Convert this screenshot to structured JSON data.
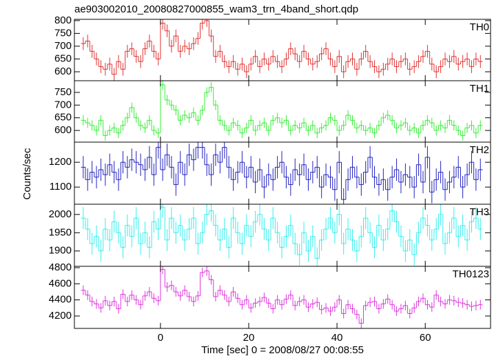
{
  "chart_data": [
    {
      "type": "step",
      "title": "ae903002010_20080827000855_wam3_trn_4band_short.qdp",
      "label": "TH0",
      "color": "#e03030",
      "x": [
        -17.5,
        -16.5,
        -15.5,
        -14.5,
        -13.5,
        -12.5,
        -11.5,
        -10.5,
        -9.5,
        -8.5,
        -7.5,
        -6.5,
        -5.5,
        -4.5,
        -3.5,
        -2.5,
        -1.5,
        -0.5,
        0.5,
        1.5,
        2.5,
        3.5,
        4.5,
        5.5,
        6.5,
        7.5,
        8.5,
        9.5,
        10.5,
        11.5,
        12.5,
        13.5,
        14.5,
        15.5,
        16.5,
        17.5,
        18.5,
        19.5,
        20.5,
        21.5,
        22.5,
        23.5,
        24.5,
        25.5,
        26.5,
        27.5,
        28.5,
        29.5,
        30.5,
        31.5,
        32.5,
        33.5,
        34.5,
        35.5,
        36.5,
        37.5,
        38.5,
        39.5,
        40.5,
        41.5,
        42.5,
        43.5,
        44.5,
        45.5,
        46.5,
        47.5,
        48.5,
        49.5,
        50.5,
        51.5,
        52.5,
        53.5,
        54.5,
        55.5,
        56.5,
        57.5,
        58.5,
        59.5,
        60.5,
        61.5,
        62.5,
        63.5,
        64.5,
        65.5,
        66.5,
        67.5,
        68.5,
        69.5,
        70.5,
        71.5,
        72.5
      ],
      "values": [
        710,
        720,
        680,
        650,
        620,
        610,
        630,
        590,
        640,
        610,
        680,
        690,
        660,
        640,
        690,
        720,
        680,
        650,
        790,
        760,
        700,
        740,
        680,
        700,
        690,
        710,
        730,
        790,
        800,
        740,
        660,
        680,
        640,
        620,
        640,
        610,
        630,
        600,
        630,
        660,
        620,
        650,
        630,
        660,
        640,
        620,
        650,
        690,
        670,
        640,
        680,
        650,
        630,
        640,
        670,
        690,
        650,
        620,
        660,
        600,
        640,
        650,
        610,
        650,
        680,
        640,
        620,
        600,
        610,
        630,
        650,
        620,
        640,
        650,
        610,
        620,
        640,
        660,
        680,
        630,
        600,
        620,
        650,
        640,
        660,
        630,
        640,
        650,
        620,
        650,
        640
      ],
      "yerr": 25,
      "xlim": [
        -19.5,
        74.8
      ],
      "xticks": [
        0,
        20,
        40,
        60
      ],
      "ylim": [
        565,
        805
      ],
      "yticks": [
        600,
        650,
        700,
        750,
        800
      ]
    },
    {
      "type": "step",
      "label": "TH1",
      "color": "#33ee33",
      "x": [
        -17.5,
        -16.5,
        -15.5,
        -14.5,
        -13.5,
        -12.5,
        -11.5,
        -10.5,
        -9.5,
        -8.5,
        -7.5,
        -6.5,
        -5.5,
        -4.5,
        -3.5,
        -2.5,
        -1.5,
        -0.5,
        0.5,
        1.5,
        2.5,
        3.5,
        4.5,
        5.5,
        6.5,
        7.5,
        8.5,
        9.5,
        10.5,
        11.5,
        12.5,
        13.5,
        14.5,
        15.5,
        16.5,
        17.5,
        18.5,
        19.5,
        20.5,
        21.5,
        22.5,
        23.5,
        24.5,
        25.5,
        26.5,
        27.5,
        28.5,
        29.5,
        30.5,
        31.5,
        32.5,
        33.5,
        34.5,
        35.5,
        36.5,
        37.5,
        38.5,
        39.5,
        40.5,
        41.5,
        42.5,
        43.5,
        44.5,
        45.5,
        46.5,
        47.5,
        48.5,
        49.5,
        50.5,
        51.5,
        52.5,
        53.5,
        54.5,
        55.5,
        56.5,
        57.5,
        58.5,
        59.5,
        60.5,
        61.5,
        62.5,
        63.5,
        64.5,
        65.5,
        66.5,
        67.5,
        68.5,
        69.5,
        70.5,
        71.5,
        72.5
      ],
      "values": [
        640,
        630,
        620,
        600,
        640,
        580,
        600,
        610,
        590,
        620,
        650,
        690,
        650,
        620,
        610,
        640,
        600,
        590,
        780,
        720,
        700,
        680,
        640,
        660,
        650,
        670,
        640,
        680,
        750,
        770,
        700,
        640,
        620,
        600,
        630,
        620,
        590,
        610,
        640,
        600,
        620,
        630,
        600,
        640,
        650,
        630,
        640,
        600,
        620,
        610,
        630,
        600,
        620,
        590,
        610,
        620,
        650,
        640,
        600,
        620,
        660,
        640,
        610,
        620,
        600,
        610,
        590,
        620,
        650,
        660,
        640,
        610,
        620,
        630,
        600,
        610,
        590,
        620,
        640,
        630,
        600,
        620,
        610,
        640,
        620,
        600,
        580,
        610,
        620,
        590,
        620
      ],
      "yerr": 20,
      "xlim": [
        -19.5,
        74.8
      ],
      "xticks": [
        0,
        20,
        40,
        60
      ],
      "ylim": [
        554,
        796
      ],
      "yticks": [
        600,
        650,
        700,
        750
      ]
    },
    {
      "type": "step",
      "label": "TH2",
      "color": "#2020c0",
      "ylabel": "Counts/sec",
      "x": [
        -17.5,
        -16.5,
        -15.5,
        -14.5,
        -13.5,
        -12.5,
        -11.5,
        -10.5,
        -9.5,
        -8.5,
        -7.5,
        -6.5,
        -5.5,
        -4.5,
        -3.5,
        -2.5,
        -1.5,
        -0.5,
        0.5,
        1.5,
        2.5,
        3.5,
        4.5,
        5.5,
        6.5,
        7.5,
        8.5,
        9.5,
        10.5,
        11.5,
        12.5,
        13.5,
        14.5,
        15.5,
        16.5,
        17.5,
        18.5,
        19.5,
        20.5,
        21.5,
        22.5,
        23.5,
        24.5,
        25.5,
        26.5,
        27.5,
        28.5,
        29.5,
        30.5,
        31.5,
        32.5,
        33.5,
        34.5,
        35.5,
        36.5,
        37.5,
        38.5,
        39.5,
        40.5,
        41.5,
        42.5,
        43.5,
        44.5,
        45.5,
        46.5,
        47.5,
        48.5,
        49.5,
        50.5,
        51.5,
        52.5,
        53.5,
        54.5,
        55.5,
        56.5,
        57.5,
        58.5,
        59.5,
        60.5,
        61.5,
        62.5,
        63.5,
        64.5,
        65.5,
        66.5,
        67.5,
        68.5,
        69.5,
        70.5,
        71.5,
        72.5
      ],
      "values": [
        1180,
        1130,
        1160,
        1140,
        1170,
        1150,
        1190,
        1160,
        1130,
        1200,
        1180,
        1210,
        1200,
        1190,
        1170,
        1220,
        1150,
        1260,
        1170,
        1230,
        1180,
        1110,
        1200,
        1150,
        1230,
        1210,
        1260,
        1260,
        1190,
        1150,
        1230,
        1200,
        1260,
        1180,
        1130,
        1160,
        1200,
        1140,
        1180,
        1120,
        1170,
        1100,
        1150,
        1130,
        1180,
        1200,
        1140,
        1110,
        1170,
        1150,
        1190,
        1130,
        1160,
        1180,
        1100,
        1150,
        1140,
        1090,
        1200,
        1050,
        1130,
        1180,
        1140,
        1110,
        1160,
        1220,
        1140,
        1110,
        1130,
        1090,
        1140,
        1170,
        1120,
        1150,
        1140,
        1100,
        1190,
        1120,
        1220,
        1080,
        1130,
        1160,
        1090,
        1120,
        1140,
        1180,
        1100,
        1150,
        1200,
        1130,
        1170
      ],
      "yerr": 45,
      "xlim": [
        -19.5,
        74.8
      ],
      "xticks": [
        0,
        20,
        40,
        60
      ],
      "ylim": [
        1031,
        1281
      ],
      "yticks": [
        1100,
        1200
      ]
    },
    {
      "type": "step",
      "label": "TH3",
      "color": "#33eeee",
      "x": [
        -17.5,
        -16.5,
        -15.5,
        -14.5,
        -13.5,
        -12.5,
        -11.5,
        -10.5,
        -9.5,
        -8.5,
        -7.5,
        -6.5,
        -5.5,
        -4.5,
        -3.5,
        -2.5,
        -1.5,
        -0.5,
        0.5,
        1.5,
        2.5,
        3.5,
        4.5,
        5.5,
        6.5,
        7.5,
        8.5,
        9.5,
        10.5,
        11.5,
        12.5,
        13.5,
        14.5,
        15.5,
        16.5,
        17.5,
        18.5,
        19.5,
        20.5,
        21.5,
        22.5,
        23.5,
        24.5,
        25.5,
        26.5,
        27.5,
        28.5,
        29.5,
        30.5,
        31.5,
        32.5,
        33.5,
        34.5,
        35.5,
        36.5,
        37.5,
        38.5,
        39.5,
        40.5,
        41.5,
        42.5,
        43.5,
        44.5,
        45.5,
        46.5,
        47.5,
        48.5,
        49.5,
        50.5,
        51.5,
        52.5,
        53.5,
        54.5,
        55.5,
        56.5,
        57.5,
        58.5,
        59.5,
        60.5,
        61.5,
        62.5,
        63.5,
        64.5,
        65.5,
        66.5,
        67.5,
        68.5,
        69.5,
        70.5,
        71.5,
        72.5
      ],
      "values": [
        1990,
        1960,
        1920,
        1940,
        1900,
        1960,
        1930,
        1980,
        1950,
        1910,
        1970,
        1940,
        1990,
        1920,
        1950,
        1910,
        1980,
        1960,
        2020,
        1930,
        1990,
        1950,
        1970,
        1930,
        1960,
        1990,
        1920,
        1950,
        2000,
        2010,
        1970,
        1930,
        1960,
        1910,
        1990,
        1950,
        1920,
        1970,
        1940,
        1980,
        2000,
        1960,
        1930,
        1990,
        1950,
        1910,
        1940,
        1970,
        1920,
        1890,
        1950,
        1900,
        1940,
        1880,
        1930,
        1960,
        1990,
        1950,
        2000,
        1920,
        1960,
        1930,
        1900,
        1940,
        1990,
        1950,
        1910,
        1970,
        1930,
        1960,
        2010,
        1980,
        1940,
        1900,
        1930,
        1890,
        1950,
        1990,
        1970,
        1930,
        1960,
        2000,
        1920,
        1950,
        1990,
        1940,
        1970,
        1930,
        1980,
        1990,
        1960
      ],
      "yerr": 30,
      "xlim": [
        -19.5,
        74.8
      ],
      "xticks": [
        0,
        20,
        40,
        60
      ],
      "ylim": [
        1858,
        2028
      ],
      "yticks": [
        1900,
        1950,
        2000
      ]
    },
    {
      "type": "step",
      "label": "TH0123",
      "color": "#dd33dd",
      "xlabel": "Time [sec] 0 = 2008/08/27 00:08:55",
      "x": [
        -17.5,
        -16.5,
        -15.5,
        -14.5,
        -13.5,
        -12.5,
        -11.5,
        -10.5,
        -9.5,
        -8.5,
        -7.5,
        -6.5,
        -5.5,
        -4.5,
        -3.5,
        -2.5,
        -1.5,
        -0.5,
        0.5,
        1.5,
        2.5,
        3.5,
        4.5,
        5.5,
        6.5,
        7.5,
        8.5,
        9.5,
        10.5,
        11.5,
        12.5,
        13.5,
        14.5,
        15.5,
        16.5,
        17.5,
        18.5,
        19.5,
        20.5,
        21.5,
        22.5,
        23.5,
        24.5,
        25.5,
        26.5,
        27.5,
        28.5,
        29.5,
        30.5,
        31.5,
        32.5,
        33.5,
        34.5,
        35.5,
        36.5,
        37.5,
        38.5,
        39.5,
        40.5,
        41.5,
        42.5,
        43.5,
        44.5,
        45.5,
        46.5,
        47.5,
        48.5,
        49.5,
        50.5,
        51.5,
        52.5,
        53.5,
        54.5,
        55.5,
        56.5,
        57.5,
        58.5,
        59.5,
        60.5,
        61.5,
        62.5,
        63.5,
        64.5,
        65.5,
        66.5,
        67.5,
        68.5,
        69.5,
        70.5,
        71.5,
        72.5
      ],
      "values": [
        4520,
        4460,
        4380,
        4350,
        4300,
        4390,
        4330,
        4380,
        4290,
        4470,
        4380,
        4460,
        4400,
        4340,
        4450,
        4500,
        4420,
        4390,
        4780,
        4560,
        4580,
        4500,
        4450,
        4520,
        4440,
        4380,
        4450,
        4740,
        4760,
        4650,
        4440,
        4520,
        4460,
        4380,
        4500,
        4420,
        4340,
        4400,
        4300,
        4360,
        4380,
        4430,
        4360,
        4290,
        4400,
        4340,
        4410,
        4460,
        4330,
        4380,
        4400,
        4310,
        4350,
        4370,
        4280,
        4300,
        4260,
        4310,
        4400,
        4230,
        4340,
        4290,
        4220,
        4110,
        4330,
        4370,
        4380,
        4290,
        4350,
        4410,
        4340,
        4260,
        4290,
        4330,
        4230,
        4300,
        4380,
        4420,
        4340,
        4310,
        4460,
        4380,
        4350,
        4400,
        4390,
        4370,
        4360,
        4340,
        4320,
        4330,
        4340
      ],
      "yerr": 60,
      "xlim": [
        -19.5,
        74.8
      ],
      "xticks": [
        0,
        20,
        40,
        60
      ],
      "ylim": [
        4046,
        4817
      ],
      "yticks": [
        4200,
        4400,
        4600,
        4800
      ]
    }
  ]
}
